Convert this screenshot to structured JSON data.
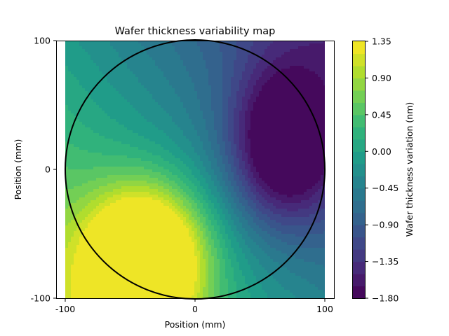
{
  "chart_data": {
    "type": "heatmap",
    "subtype": "filled-contour",
    "title": "Wafer thickness variability map",
    "xlabel": "Position (mm)",
    "ylabel": "Position (mm)",
    "xlim": [
      -100,
      100
    ],
    "ylim": [
      -100,
      100
    ],
    "x_ticks": [
      -100,
      0,
      100
    ],
    "y_ticks": [
      -100,
      0,
      100
    ],
    "x_tick_labels": [
      "-100",
      "0",
      "100"
    ],
    "y_tick_labels": [
      "-100",
      "0",
      "100"
    ],
    "colorbar": {
      "label": "Wafer thickness variation (nm)",
      "range": [
        -1.8,
        1.35
      ],
      "ticks": [
        -1.8,
        -1.35,
        -0.9,
        -0.45,
        0.0,
        0.45,
        0.9,
        1.35
      ],
      "tick_labels": [
        "−1.80",
        "−1.35",
        "−0.90",
        "−0.45",
        "0.00",
        "0.45",
        "0.90",
        "1.35"
      ],
      "levels": 21,
      "colormap": "viridis"
    },
    "wafer_outline": {
      "shape": "circle",
      "center": [
        0,
        0
      ],
      "radius": 100,
      "color": "#000000"
    },
    "features": [
      {
        "kind": "maximum",
        "x": -38,
        "y": -70,
        "value": 1.35
      },
      {
        "kind": "minimum",
        "x": 68,
        "y": 18,
        "value": -1.8
      }
    ],
    "grid": false,
    "legend": "none"
  }
}
